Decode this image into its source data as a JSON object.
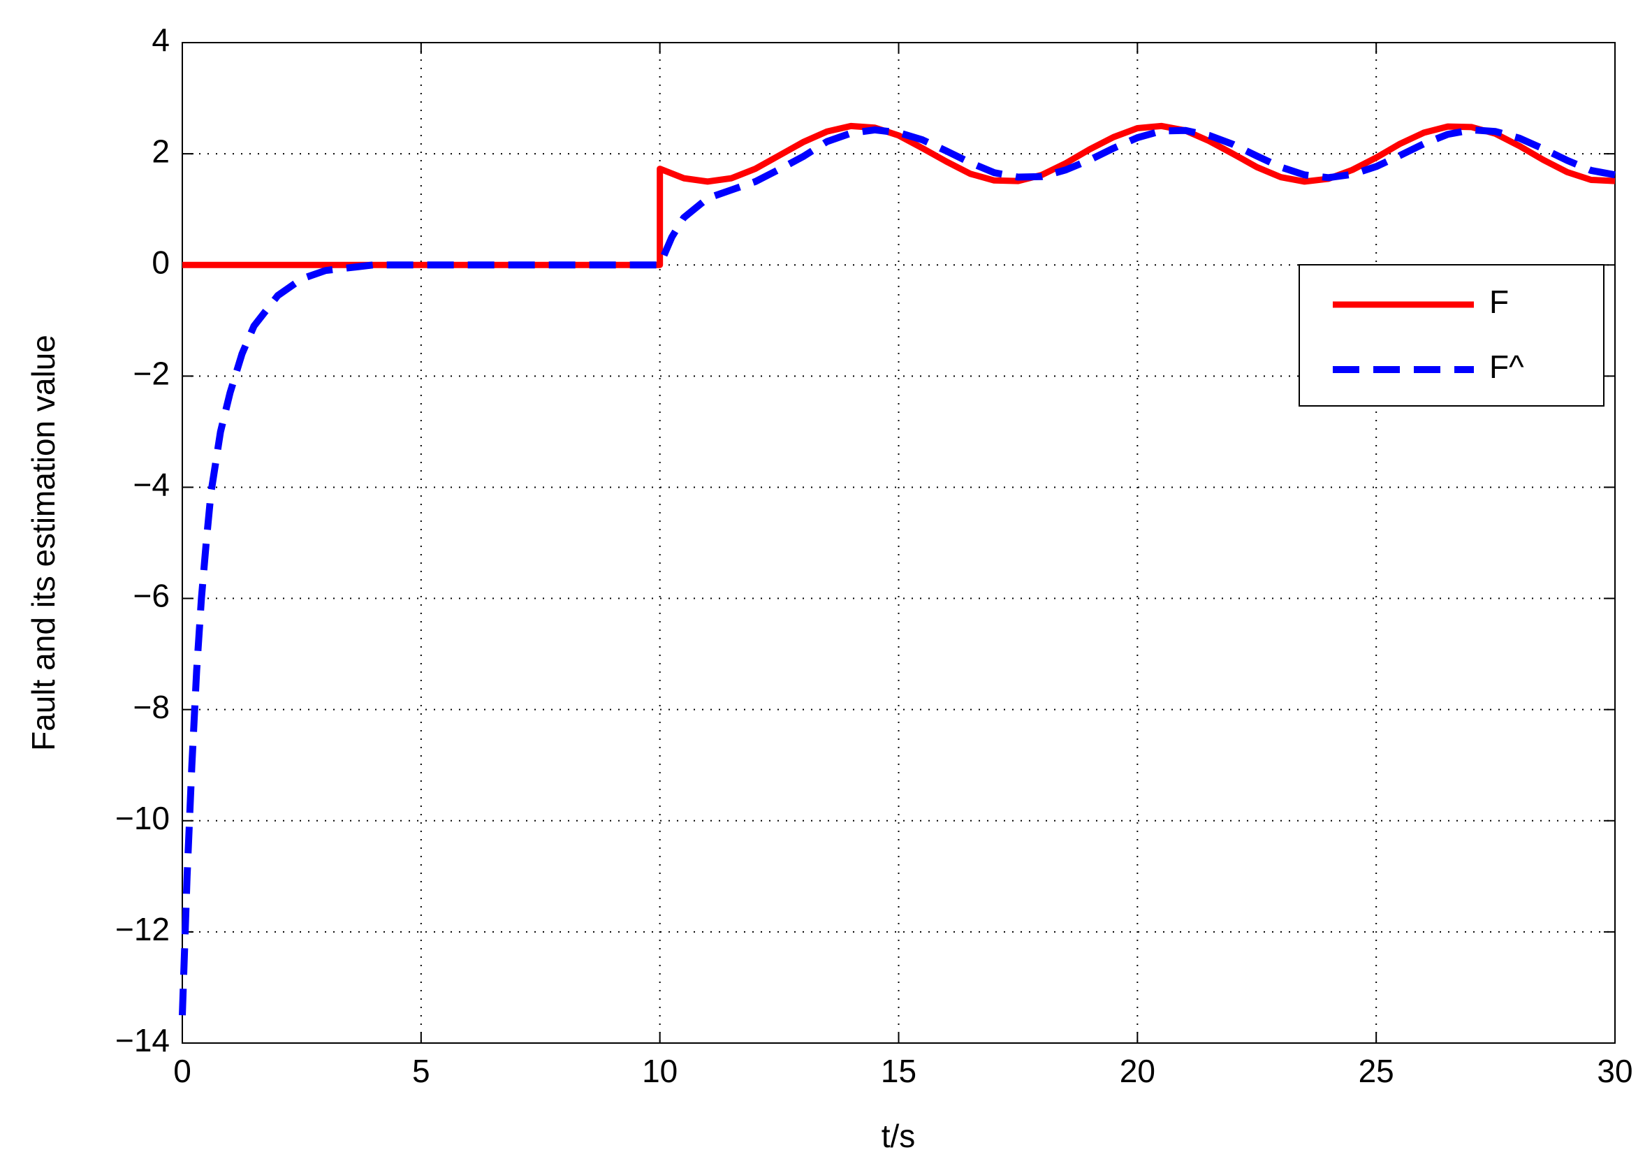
{
  "chart_data": {
    "type": "line",
    "xlabel": "t/s",
    "ylabel": "Fault and its estimation value",
    "xlim": [
      0,
      30
    ],
    "xticks": [
      0,
      5,
      10,
      15,
      20,
      25,
      30
    ],
    "ylim": [
      -14,
      4
    ],
    "yticks": [
      {
        "value": -14,
        "label": "−14"
      },
      {
        "value": -12,
        "label": "−12"
      },
      {
        "value": -10,
        "label": "−10"
      },
      {
        "value": -8,
        "label": "−8"
      },
      {
        "value": -6,
        "label": "−6"
      },
      {
        "value": -4,
        "label": "−4"
      },
      {
        "value": -2,
        "label": "−2"
      },
      0,
      2,
      4
    ],
    "grid": true,
    "legend": "upper right",
    "series": [
      {
        "name": "F",
        "color": "#ff0000",
        "style": "solid",
        "x": [
          0,
          10,
          10,
          10.5,
          11,
          11.5,
          12,
          12.5,
          13,
          13.5,
          14,
          14.5,
          15,
          15.5,
          16,
          16.5,
          17,
          17.5,
          18,
          18.5,
          19,
          19.5,
          20,
          20.5,
          21,
          21.5,
          22,
          22.5,
          23,
          23.5,
          24,
          24.5,
          25,
          25.5,
          26,
          26.5,
          27,
          27.5,
          28,
          28.5,
          29,
          29.5,
          30
        ],
        "values": [
          0,
          0,
          1.73,
          1.56,
          1.5,
          1.56,
          1.73,
          1.97,
          2.21,
          2.4,
          2.5,
          2.47,
          2.33,
          2.1,
          1.86,
          1.64,
          1.52,
          1.51,
          1.62,
          1.83,
          2.08,
          2.3,
          2.46,
          2.5,
          2.42,
          2.23,
          2.0,
          1.76,
          1.58,
          1.5,
          1.55,
          1.71,
          1.93,
          2.18,
          2.38,
          2.49,
          2.48,
          2.36,
          2.14,
          1.89,
          1.67,
          1.53,
          1.51
        ]
      },
      {
        "name": "F^",
        "color": "#0000ff",
        "style": "dashed",
        "x": [
          0,
          0.1,
          0.2,
          0.3,
          0.4,
          0.5,
          0.6,
          0.8,
          1,
          1.25,
          1.5,
          2,
          2.5,
          3,
          3.5,
          4,
          10,
          10.25,
          10.5,
          11,
          11.5,
          12,
          12.5,
          13,
          13.5,
          14,
          14.5,
          15,
          15.5,
          16,
          16.5,
          17,
          17.5,
          18,
          18.5,
          19,
          19.5,
          20,
          20.5,
          21,
          21.5,
          22,
          22.5,
          23,
          23.5,
          24,
          24.5,
          25,
          25.5,
          26,
          26.5,
          27,
          27.5,
          28,
          28.5,
          29,
          29.5,
          30
        ],
        "values": [
          -13.5,
          -11,
          -9,
          -7.3,
          -6,
          -5,
          -4.1,
          -3,
          -2.3,
          -1.6,
          -1.1,
          -0.55,
          -0.25,
          -0.1,
          -0.05,
          0,
          0,
          0.5,
          0.85,
          1.2,
          1.35,
          1.5,
          1.72,
          1.95,
          2.22,
          2.37,
          2.43,
          2.38,
          2.25,
          2.05,
          1.84,
          1.66,
          1.58,
          1.59,
          1.71,
          1.89,
          2.1,
          2.29,
          2.41,
          2.42,
          2.33,
          2.17,
          1.96,
          1.76,
          1.62,
          1.57,
          1.63,
          1.77,
          1.97,
          2.18,
          2.35,
          2.43,
          2.4,
          2.28,
          2.09,
          1.88,
          1.7,
          1.62
        ]
      }
    ]
  }
}
